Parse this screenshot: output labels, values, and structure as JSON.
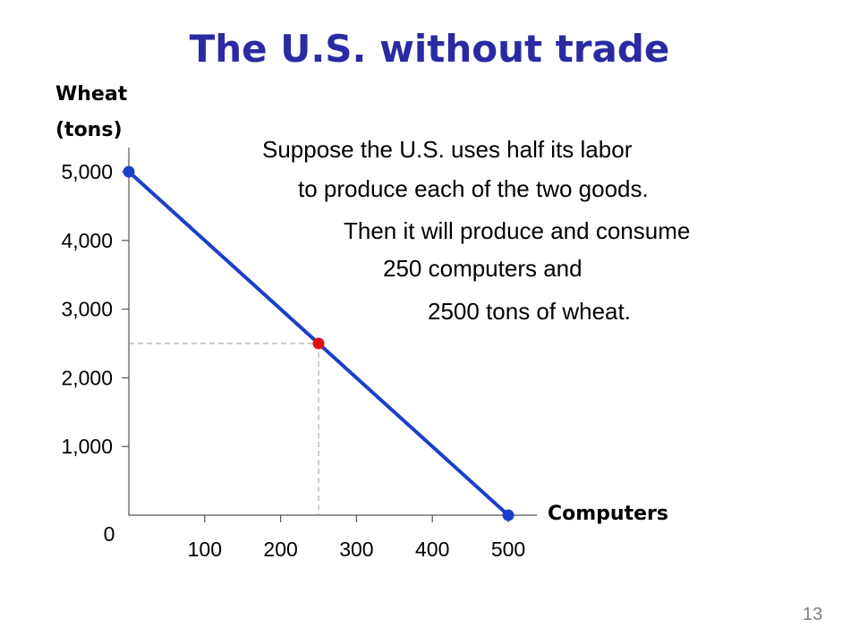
{
  "slide": {
    "title": "The U.S. without trade",
    "page_number": "13",
    "annotations": [
      "Suppose the U.S. uses half its labor",
      "to produce each of the two goods.",
      "Then it will produce and consume",
      "250 computers  and",
      "2500 tons of wheat."
    ]
  },
  "chart_data": {
    "type": "line",
    "xlabel": "Computers",
    "ylabel": [
      "Wheat",
      "(tons)"
    ],
    "xlim": [
      0,
      500
    ],
    "ylim": [
      0,
      5000
    ],
    "x_ticks": [
      100,
      200,
      300,
      400,
      500
    ],
    "x_tick_labels": [
      "100",
      "200",
      "300",
      "400",
      "500"
    ],
    "y_ticks": [
      1000,
      2000,
      3000,
      4000,
      5000
    ],
    "y_tick_labels": [
      "1,000",
      "2,000",
      "3,000",
      "4,000",
      "5,000"
    ],
    "origin_label": "0",
    "grid": false,
    "series": [
      {
        "x": [
          0,
          500
        ],
        "y": [
          5000,
          0
        ],
        "color": "#1a3fc9"
      }
    ],
    "endpoints": [
      {
        "x": 0,
        "y": 5000,
        "color": "#1a3fc9"
      },
      {
        "x": 500,
        "y": 0,
        "color": "#1a3fc9"
      }
    ],
    "highlight_point": {
      "x": 250,
      "y": 2500,
      "color": "#e01010"
    },
    "guide_line_color": "#9a9a9a"
  }
}
